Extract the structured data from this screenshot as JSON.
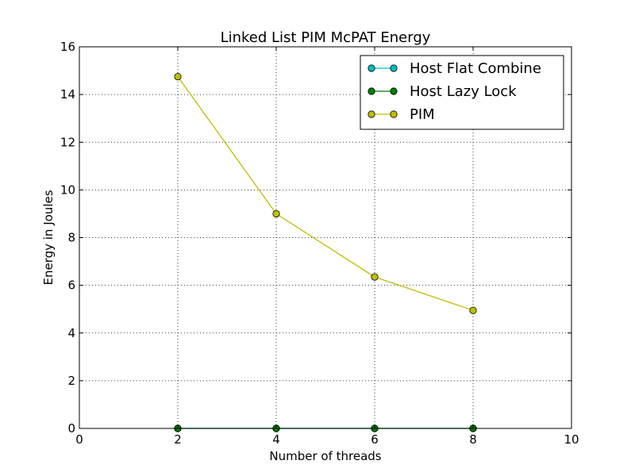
{
  "chart_data": {
    "type": "line",
    "title": "Linked List PIM McPAT Energy",
    "xlabel": "Number of threads",
    "ylabel": "Energy in Joules",
    "xlim": [
      0,
      10
    ],
    "ylim": [
      0,
      16
    ],
    "xticks": [
      0,
      2,
      4,
      6,
      8,
      10
    ],
    "yticks": [
      0,
      2,
      4,
      6,
      8,
      10,
      12,
      14,
      16
    ],
    "grid": true,
    "legend_position": "top-right",
    "x": [
      2,
      4,
      6,
      8
    ],
    "series": [
      {
        "name": "Host Flat Combine",
        "color": "#00bfbf",
        "values": [
          0,
          0,
          0,
          0
        ]
      },
      {
        "name": "Host Lazy Lock",
        "color": "#008000",
        "values": [
          0,
          0,
          0,
          0
        ]
      },
      {
        "name": "PIM",
        "color": "#bfbf00",
        "values": [
          14.75,
          9.0,
          6.35,
          4.95
        ]
      }
    ]
  }
}
